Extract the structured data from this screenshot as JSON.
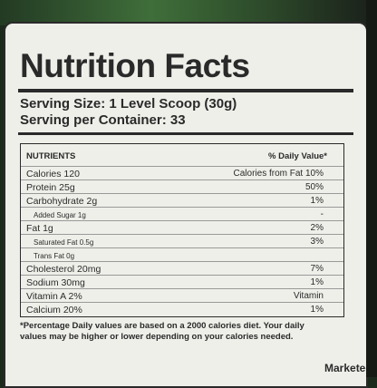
{
  "label": {
    "title": "Nutrition Facts",
    "serving_size": "Serving Size: 1 Level Scoop (30g)",
    "servings": "Serving per Container: 33",
    "table": {
      "header_left": "NUTRIENTS",
      "header_right": "% Daily Value*",
      "rows": [
        {
          "nutrient": "Calories 120",
          "value": "Calories from Fat 10%"
        },
        {
          "nutrient": "Protein 25g",
          "value": "50%"
        },
        {
          "nutrient": "Carbohydrate 2g",
          "value": "1%"
        },
        {
          "nutrient": "Added Sugar 1g",
          "value": "-",
          "indent": true
        },
        {
          "nutrient": "Fat 1g",
          "value": "2%"
        },
        {
          "nutrient": "Saturated Fat 0.5g",
          "value": "3%",
          "indent": true
        },
        {
          "nutrient": "Trans Fat 0g",
          "indent": true
        },
        {
          "nutrient": "Cholesterol 20mg",
          "value": "7%"
        },
        {
          "nutrient": "Sodium 30mg",
          "value": "1%"
        },
        {
          "nutrient": "Vitamin A 2%",
          "value": "Vitamin"
        },
        {
          "nutrient": "Calcium 20%",
          "value": "1%"
        }
      ]
    },
    "footnote": "*Percentage Daily values are based on a 2000 calories diet. Your daily values may be higher or lower depending on your calories needed.",
    "marketed": "Marketed"
  }
}
